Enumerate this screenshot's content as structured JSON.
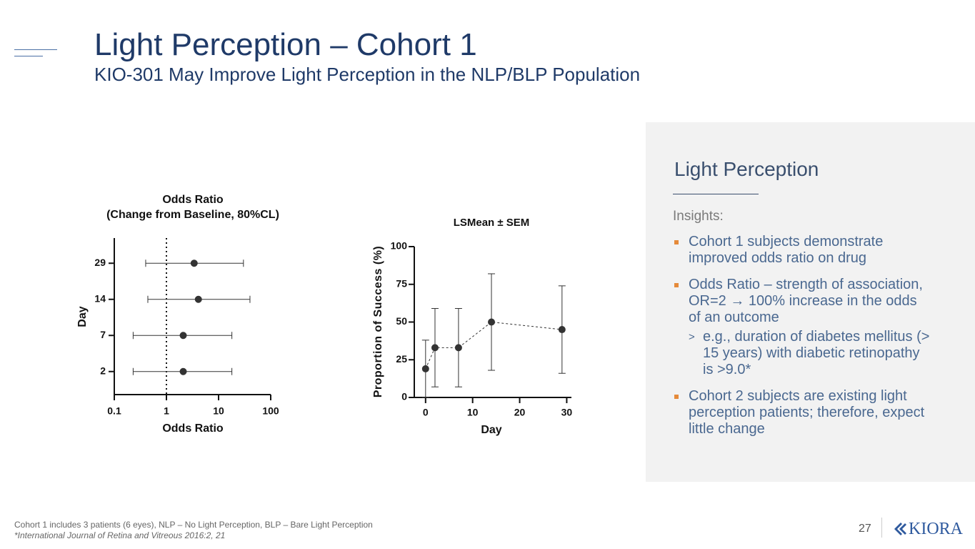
{
  "header": {
    "title": "Light Perception – Cohort 1",
    "subtitle": "KIO-301 May Improve Light Perception in the NLP/BLP Population"
  },
  "chart_data": [
    {
      "type": "forest",
      "title": "Odds Ratio",
      "subtitle": "(Change from Baseline, 80%CL)",
      "x_label": "Odds Ratio",
      "y_label": "Day",
      "categories": [
        "29",
        "14",
        "7",
        "2"
      ],
      "values": [
        3.4,
        4.1,
        2.1,
        2.1
      ],
      "ci_low": [
        0.4,
        0.44,
        0.23,
        0.23
      ],
      "ci_high": [
        30,
        40,
        18,
        18
      ],
      "xscale": "log",
      "xlim": [
        0.1,
        100
      ],
      "xticks": [
        0.1,
        1,
        10,
        100
      ],
      "reference_line": 1,
      "color": "#333333"
    },
    {
      "type": "scatter",
      "title": "LSMean ± SEM",
      "x_label": "Day",
      "y_label": "Proportion of  Success (%)",
      "x": [
        0,
        2,
        7,
        14,
        29
      ],
      "values": [
        19,
        33,
        33,
        50,
        45
      ],
      "errors": [
        19,
        26,
        26,
        32,
        29
      ],
      "xlim": [
        -2.4,
        31
      ],
      "xticks": [
        0,
        10,
        20,
        30
      ],
      "ylim": [
        0,
        100
      ],
      "yticks": [
        0,
        25,
        50,
        75,
        100
      ],
      "color": "#333333",
      "line_style": "dashed"
    }
  ],
  "sidebar": {
    "heading": "Light Perception",
    "insights_label": "Insights:",
    "bullets": [
      "Cohort 1 subjects demonstrate improved odds ratio on drug",
      "Odds Ratio – strength of association, OR=2 → 100% increase in the odds of an outcome",
      "Cohort 2 subjects are existing light perception patients; therefore, expect little change"
    ],
    "sub_bullet": "e.g., duration of diabetes mellitus (> 15 years) with diabetic retinopathy is >9.0*"
  },
  "footer": {
    "note": "Cohort 1 includes 3 patients (6 eyes), NLP – No Light Perception, BLP – Bare Light Perception",
    "citation": "*International Journal of Retina and Vitreous 2016:2, 21",
    "page_number": "27",
    "logo": "KIORA"
  }
}
